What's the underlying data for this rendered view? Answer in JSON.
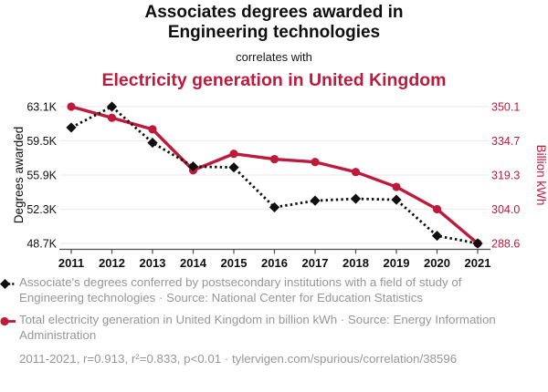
{
  "header": {
    "title_line1": "Associates degrees awarded in",
    "title_line2": "Engineering technologies",
    "connector": "correlates with",
    "red_title": "Electricity generation in United Kingdom"
  },
  "colors": {
    "red": "#bd1a3c",
    "black": "#0f0f0f",
    "grid": "#ececec",
    "axis": "#4d4d4d",
    "muted": "#979797"
  },
  "chart_data": {
    "type": "line",
    "x": [
      2011,
      2012,
      2013,
      2014,
      2015,
      2016,
      2017,
      2018,
      2019,
      2020,
      2021
    ],
    "x_tick_labels": [
      "2011",
      "2012",
      "2013",
      "2014",
      "2015",
      "2016",
      "2017",
      "2018",
      "2019",
      "2020",
      "2021"
    ],
    "series": [
      {
        "name": "Associate's degrees conferred in Engineering technologies",
        "axis": "left",
        "marker": "diamond",
        "line_style": "dotted",
        "color": "#0f0f0f",
        "unit": "thousand degrees",
        "values": [
          60.9,
          63.1,
          59.3,
          56.8,
          56.7,
          52.5,
          53.2,
          53.4,
          53.3,
          49.5,
          48.7
        ]
      },
      {
        "name": "Total electricity generation in United Kingdom",
        "axis": "right",
        "marker": "circle",
        "line_style": "solid",
        "color": "#bd1a3c",
        "unit": "billion kWh",
        "values": [
          350.1,
          345.1,
          339.9,
          321.5,
          328.9,
          326.5,
          325.2,
          320.7,
          314.0,
          304.0,
          288.6
        ]
      }
    ],
    "left_axis": {
      "label": "Degrees awarded",
      "tick_labels": [
        "63.1K",
        "59.5K",
        "55.9K",
        "52.3K",
        "48.7K"
      ],
      "tick_values": [
        63.1,
        59.5,
        55.9,
        52.3,
        48.7
      ],
      "range": [
        48.7,
        63.1
      ]
    },
    "right_axis": {
      "label": "Billion kWh",
      "tick_labels": [
        "350.1",
        "334.7",
        "319.3",
        "304.0",
        "288.6"
      ],
      "tick_values": [
        350.1,
        334.7,
        319.3,
        304.0,
        288.6
      ],
      "range": [
        288.6,
        350.1
      ]
    },
    "grid": "horizontal",
    "legend_position": "bottom"
  },
  "legend": {
    "items": [
      {
        "marker": "black-diamond-dotted",
        "text": "Associate's degrees conferred by postsecondary institutions with a field of study of Engineering technologies · Source: National Center for Education Statistics"
      },
      {
        "marker": "red-circle-solid",
        "text": "Total electricity generation in United Kingdom in billion kWh · Source: Energy Information Administration"
      }
    ]
  },
  "footer": {
    "text": "2011-2021, r=0.913, r²=0.833, p<0.01 · tylervigen.com/spurious/correlation/38596"
  }
}
